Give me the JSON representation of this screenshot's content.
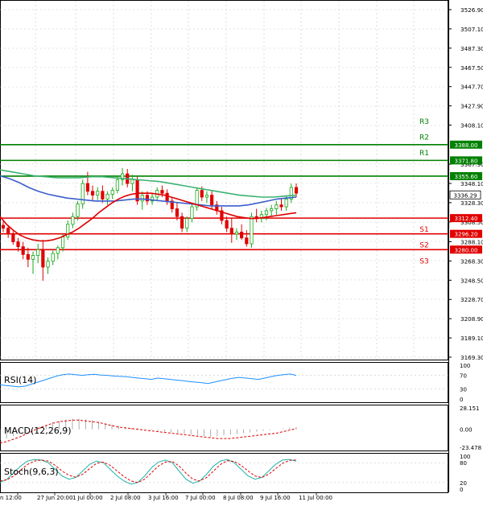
{
  "chart_data": {
    "type": "candlestick",
    "main": {
      "price_ticks": [
        "3526.90",
        "3507.10",
        "3487.30",
        "3467.50",
        "3447.70",
        "3427.90",
        "3408.10",
        "3388.00",
        "3371.80",
        "3367.90",
        "3355.60",
        "3348.10",
        "3336.29",
        "3328.30",
        "3312.40",
        "3308.50",
        "3296.20",
        "3288.10",
        "3280.00",
        "3268.30",
        "3248.50",
        "3228.70",
        "3208.90",
        "3189.10",
        "3169.30"
      ],
      "ylim": [
        3169.3,
        3526.9
      ],
      "levels": [
        {
          "name": "R3",
          "value": 3388.0,
          "label": "3388.00",
          "color": "#008000"
        },
        {
          "name": "R2",
          "value": 3371.8,
          "label": "3371.80",
          "color": "#008000"
        },
        {
          "name": "R1",
          "value": 3355.6,
          "label": "3355.60",
          "color": "#008000"
        },
        {
          "name": "S1",
          "value": 3312.4,
          "label": "3312.40",
          "color": "#e00000"
        },
        {
          "name": "S2",
          "value": 3296.2,
          "label": "3296.20",
          "color": "#e00000"
        },
        {
          "name": "S3",
          "value": 3280.0,
          "label": "3280.00",
          "color": "#e00000"
        }
      ],
      "current_price": "3336.29",
      "candles": [
        [
          3305,
          3309,
          3298,
          3302
        ],
        [
          3302,
          3304,
          3292,
          3296
        ],
        [
          3296,
          3299,
          3285,
          3288
        ],
        [
          3288,
          3292,
          3278,
          3283
        ],
        [
          3283,
          3288,
          3270,
          3275
        ],
        [
          3275,
          3282,
          3262,
          3270
        ],
        [
          3270,
          3278,
          3255,
          3274
        ],
        [
          3274,
          3286,
          3266,
          3280
        ],
        [
          3280,
          3290,
          3248,
          3262
        ],
        [
          3262,
          3272,
          3255,
          3268
        ],
        [
          3268,
          3279,
          3264,
          3276
        ],
        [
          3276,
          3284,
          3270,
          3282
        ],
        [
          3282,
          3296,
          3278,
          3293
        ],
        [
          3293,
          3310,
          3290,
          3306
        ],
        [
          3306,
          3318,
          3302,
          3314
        ],
        [
          3314,
          3330,
          3310,
          3327
        ],
        [
          3327,
          3352,
          3322,
          3348
        ],
        [
          3348,
          3360,
          3336,
          3340
        ],
        [
          3340,
          3346,
          3330,
          3336
        ],
        [
          3336,
          3344,
          3331,
          3340
        ],
        [
          3340,
          3346,
          3328,
          3332
        ],
        [
          3332,
          3340,
          3326,
          3337
        ],
        [
          3337,
          3344,
          3332,
          3341
        ],
        [
          3341,
          3356,
          3338,
          3352
        ],
        [
          3352,
          3364,
          3346,
          3358
        ],
        [
          3358,
          3363,
          3344,
          3348
        ],
        [
          3348,
          3357,
          3340,
          3352
        ],
        [
          3352,
          3355,
          3326,
          3330
        ],
        [
          3330,
          3340,
          3321,
          3336
        ],
        [
          3336,
          3340,
          3326,
          3330
        ],
        [
          3330,
          3338,
          3326,
          3334
        ],
        [
          3334,
          3344,
          3330,
          3341
        ],
        [
          3341,
          3346,
          3334,
          3338
        ],
        [
          3338,
          3342,
          3326,
          3330
        ],
        [
          3330,
          3334,
          3318,
          3322
        ],
        [
          3322,
          3328,
          3310,
          3314
        ],
        [
          3314,
          3318,
          3298,
          3302
        ],
        [
          3302,
          3314,
          3298,
          3312
        ],
        [
          3312,
          3328,
          3308,
          3324
        ],
        [
          3324,
          3344,
          3320,
          3341
        ],
        [
          3341,
          3345,
          3330,
          3334
        ],
        [
          3334,
          3340,
          3328,
          3336
        ],
        [
          3336,
          3340,
          3322,
          3326
        ],
        [
          3326,
          3330,
          3316,
          3320
        ],
        [
          3320,
          3324,
          3306,
          3310
        ],
        [
          3310,
          3314,
          3298,
          3302
        ],
        [
          3302,
          3312,
          3287,
          3296
        ],
        [
          3296,
          3302,
          3290,
          3298
        ],
        [
          3298,
          3306,
          3290,
          3292
        ],
        [
          3292,
          3300,
          3283,
          3286
        ],
        [
          3286,
          3318,
          3282,
          3314
        ],
        [
          3314,
          3322,
          3308,
          3312
        ],
        [
          3312,
          3320,
          3308,
          3316
        ],
        [
          3316,
          3323,
          3310,
          3320
        ],
        [
          3320,
          3326,
          3314,
          3322
        ],
        [
          3322,
          3330,
          3316,
          3326
        ],
        [
          3326,
          3332,
          3320,
          3324
        ],
        [
          3324,
          3336,
          3320,
          3332
        ],
        [
          3332,
          3348,
          3328,
          3344
        ],
        [
          3344,
          3348,
          3334,
          3338
        ]
      ],
      "ma_red": [
        3314,
        3306,
        3300,
        3295,
        3292,
        3290,
        3289,
        3289,
        3290,
        3292,
        3295,
        3298,
        3302,
        3307,
        3312,
        3318,
        3323,
        3328,
        3332,
        3335,
        3337,
        3338,
        3338,
        3338,
        3337,
        3336,
        3334,
        3332,
        3330,
        3328,
        3326,
        3324,
        3322,
        3320,
        3318,
        3316,
        3314,
        3313,
        3312,
        3312,
        3313,
        3314,
        3315,
        3316,
        3317,
        3318
      ],
      "ma_blue": [
        3356,
        3353,
        3349,
        3344,
        3340,
        3337,
        3335,
        3333,
        3332,
        3331,
        3330,
        3330,
        3330,
        3331,
        3332,
        3332,
        3331,
        3330,
        3329,
        3328,
        3327,
        3326,
        3325,
        3325,
        3325,
        3325,
        3326,
        3328,
        3330,
        3332,
        3333,
        3334
      ],
      "ma_green": [
        3362,
        3360,
        3358,
        3356,
        3355,
        3354,
        3354,
        3354,
        3355,
        3355,
        3354,
        3353,
        3352,
        3351,
        3350,
        3348,
        3346,
        3344,
        3342,
        3340,
        3338,
        3336,
        3335,
        3334,
        3334,
        3335,
        3336
      ]
    },
    "rsi": {
      "title": "RSI(14)",
      "ticks": [
        "100",
        "70",
        "30",
        "0"
      ],
      "ylim": [
        0,
        100
      ],
      "values": [
        42,
        40,
        38,
        36,
        38,
        44,
        50,
        56,
        62,
        68,
        72,
        74,
        72,
        70,
        72,
        73,
        71,
        70,
        68,
        67,
        66,
        64,
        62,
        60,
        58,
        62,
        60,
        58,
        56,
        54,
        52,
        50,
        48,
        46,
        50,
        54,
        58,
        62,
        64,
        62,
        60,
        58,
        62,
        66,
        70,
        72,
        74,
        70
      ]
    },
    "macd": {
      "title": "MACD(12,26,9)",
      "ticks": [
        "28.151",
        "0.00",
        "-23.478"
      ],
      "ylim": [
        -23.478,
        28.151
      ],
      "hist": [
        -14,
        -12,
        -9,
        -6,
        -3,
        0,
        3,
        6,
        9,
        11,
        13,
        14,
        14,
        13,
        12,
        10,
        8,
        6,
        5,
        3,
        2,
        1,
        0,
        -1,
        -2,
        -3,
        -4,
        -5,
        -6,
        -7,
        -8,
        -9,
        -10,
        -9,
        -8,
        -7,
        -6,
        -5,
        -4,
        -3,
        -2,
        -1,
        0,
        1,
        2,
        3
      ],
      "signal": [
        -18,
        -16,
        -13,
        -10,
        -6,
        -2,
        2,
        5,
        8,
        10,
        11,
        12,
        12,
        11,
        10,
        9,
        7,
        5,
        3,
        2,
        1,
        0,
        -1,
        -2,
        -3,
        -4,
        -5,
        -6,
        -7,
        -8,
        -9,
        -10,
        -11,
        -12,
        -12,
        -12,
        -11,
        -10,
        -9,
        -8,
        -7,
        -6,
        -5,
        -3,
        -1,
        1
      ]
    },
    "stoch": {
      "title": "Stoch(9,6,3)",
      "ticks": [
        "100",
        "80",
        "20",
        "0"
      ],
      "ylim": [
        0,
        100
      ],
      "k": [
        20,
        30,
        50,
        70,
        85,
        90,
        88,
        80,
        60,
        40,
        30,
        35,
        55,
        75,
        85,
        80,
        60,
        40,
        25,
        15,
        20,
        40,
        65,
        82,
        88,
        80,
        55,
        30,
        18,
        25,
        45,
        70,
        85,
        90,
        80,
        60,
        40,
        30,
        35,
        55,
        75,
        88,
        90,
        85
      ],
      "d": [
        25,
        28,
        40,
        58,
        75,
        85,
        88,
        85,
        72,
        55,
        42,
        36,
        45,
        62,
        78,
        82,
        72,
        55,
        38,
        25,
        20,
        30,
        50,
        70,
        82,
        84,
        70,
        48,
        30,
        25,
        35,
        55,
        75,
        86,
        84,
        72,
        55,
        40,
        35,
        45,
        62,
        78,
        87,
        88
      ]
    },
    "x_ticks": [
      "n 12:00",
      "27 Jun 20:00",
      "1 Jul 00:00",
      "2 Jul 08:00",
      "3 Jul 16:00",
      "7 Jul 00:00",
      "8 Jul 08:00",
      "9 Jul 16:00",
      "11 Jul 00:00"
    ]
  }
}
